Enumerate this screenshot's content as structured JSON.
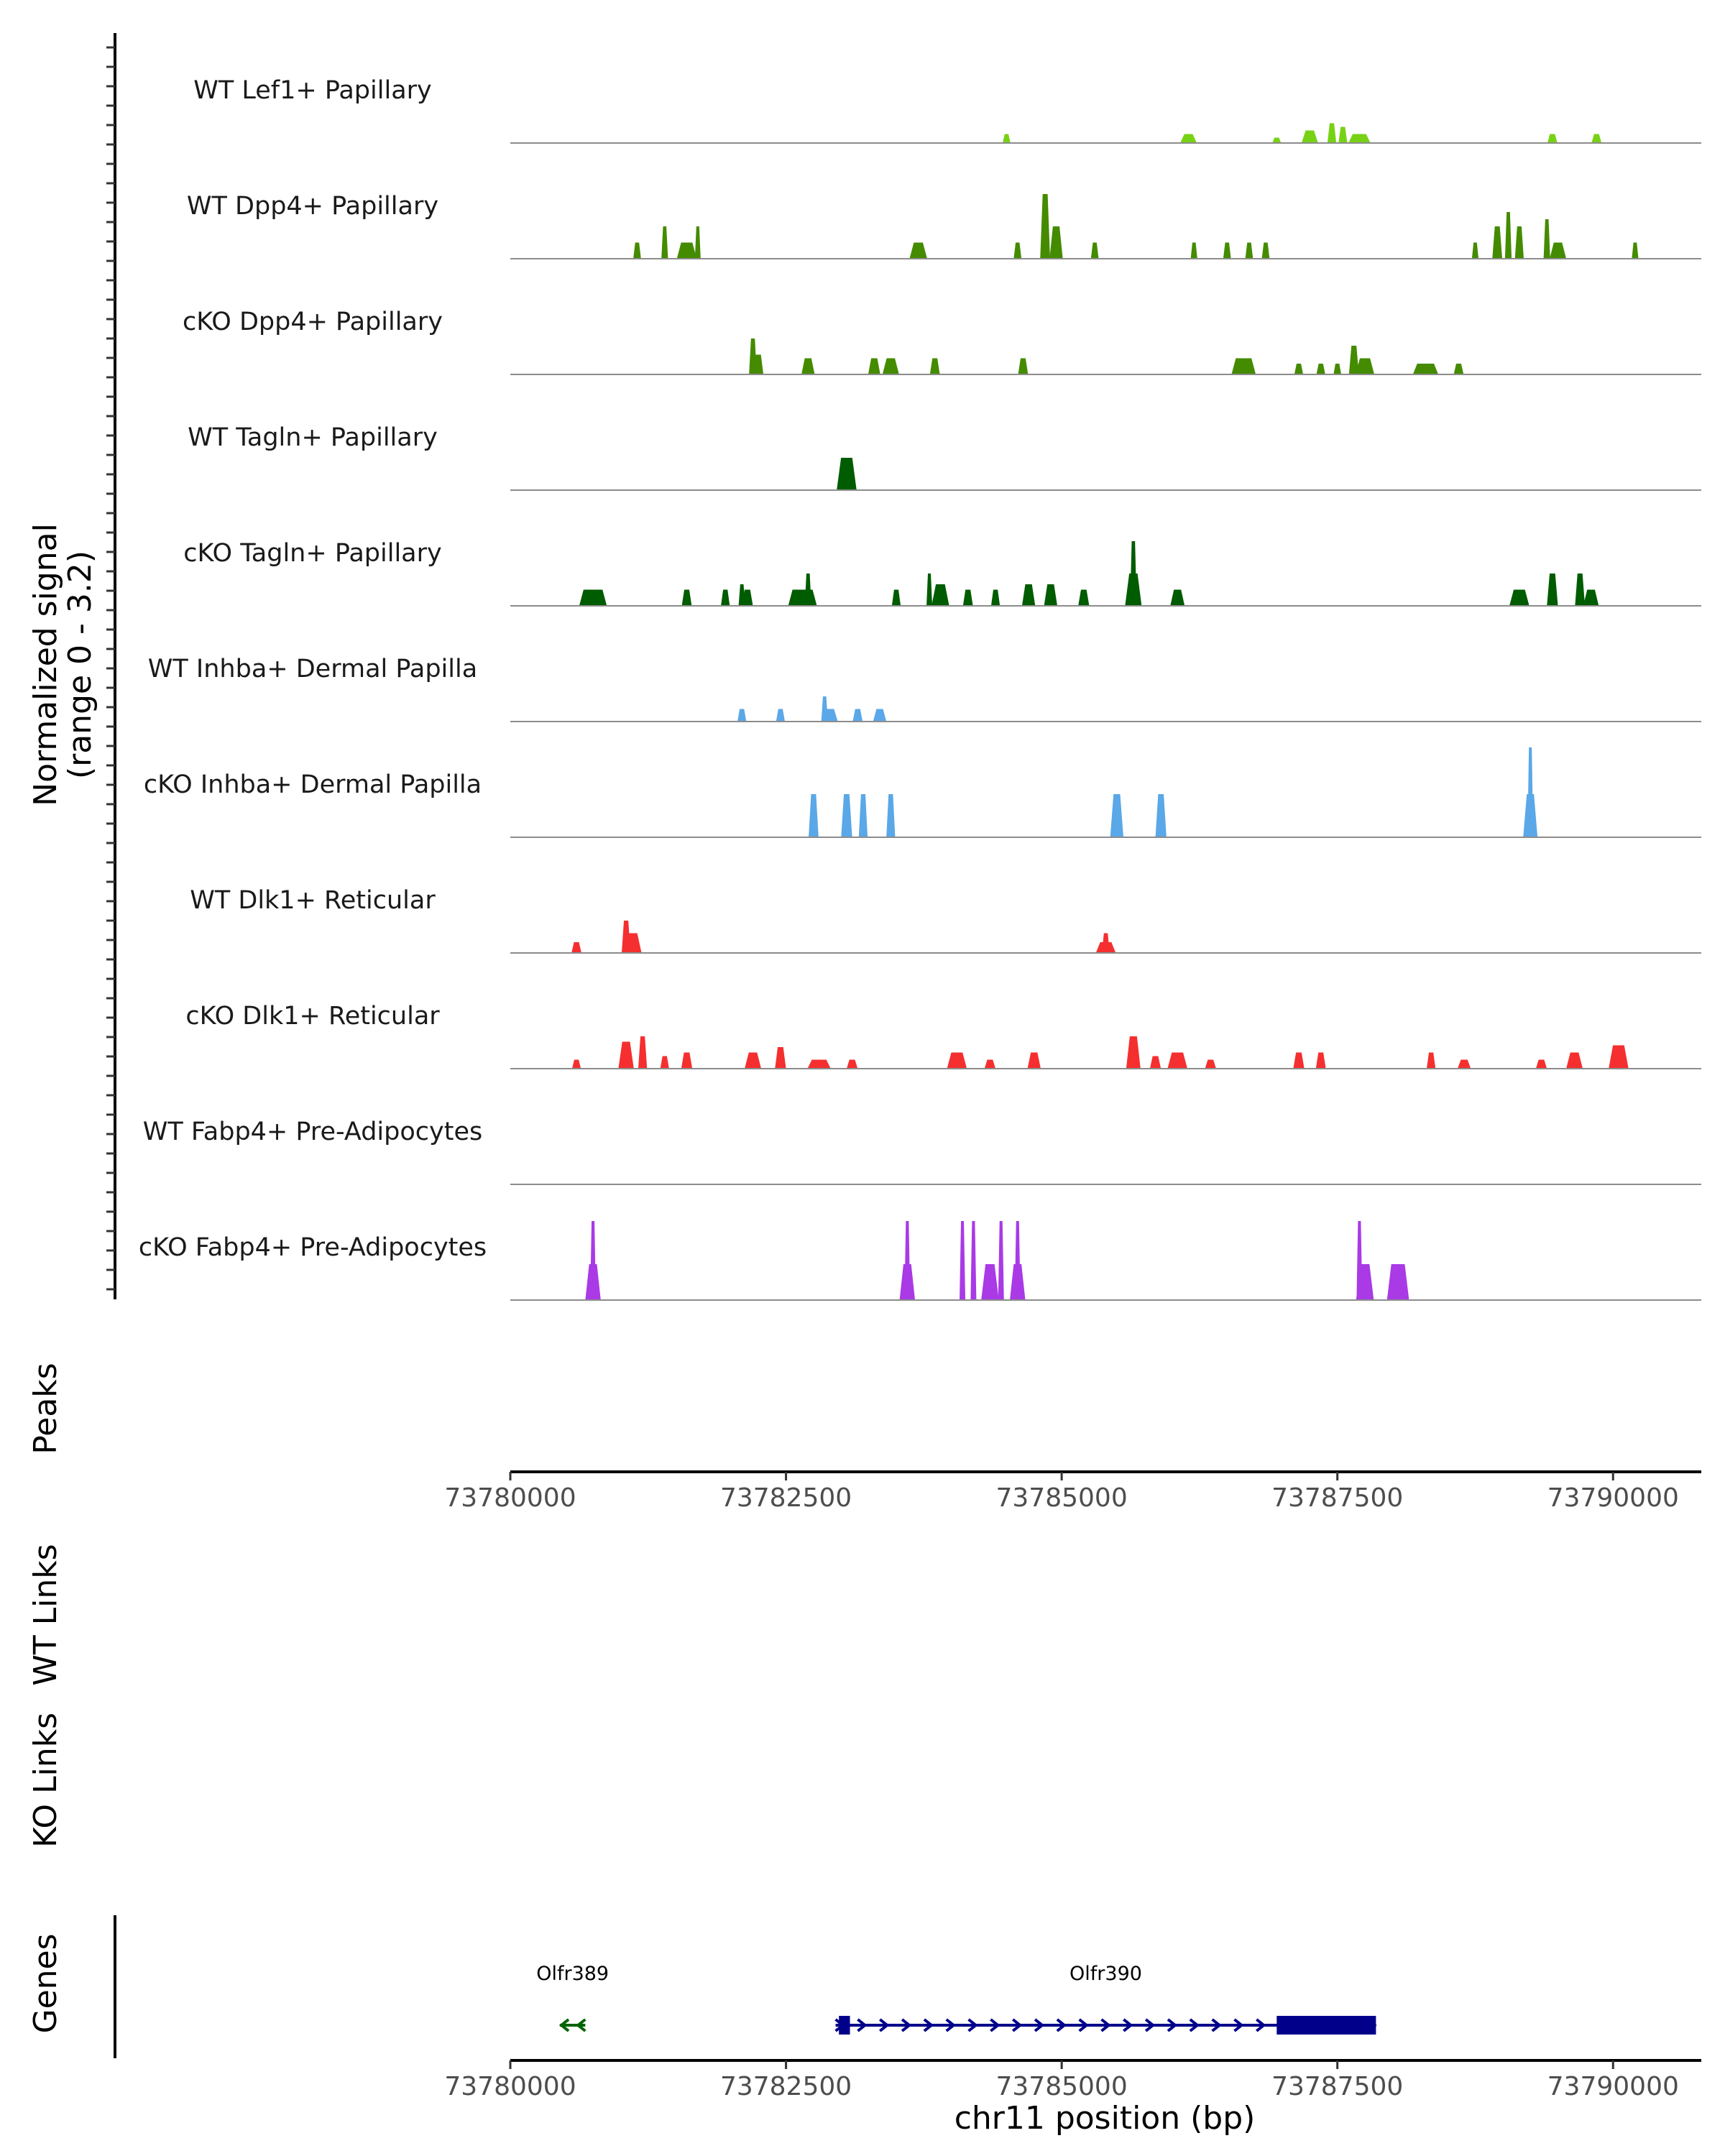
{
  "chart_data": {
    "type": "coverage",
    "ylabel": "Normalized signal",
    "yrange_label": "(range 0 - 3.2)",
    "ylim": [
      0,
      3.2
    ],
    "xlim": [
      73780000,
      73790800
    ],
    "xlabel": "chr11 position (bp)",
    "x_ticks": [
      "73780000",
      "73782500",
      "73785000",
      "73787500",
      "73790000"
    ],
    "x_tick_values": [
      73780000,
      73782500,
      73785000,
      73787500,
      73790000
    ],
    "section_labels": {
      "peaks": "Peaks",
      "wt_links": "WT Links",
      "ko_links": "KO Links",
      "genes": "Genes"
    },
    "tracks": [
      {
        "name": "WT Lef1+ Papillary",
        "color": "#77d215",
        "peaks": [
          [
            73784500,
            0.25,
            70
          ],
          [
            73786150,
            0.25,
            150
          ],
          [
            73786950,
            0.15,
            80
          ],
          [
            73787250,
            0.35,
            150
          ],
          [
            73787450,
            0.55,
            80
          ],
          [
            73787550,
            0.45,
            80
          ],
          [
            73787700,
            0.25,
            200
          ],
          [
            73789450,
            0.25,
            90
          ],
          [
            73789850,
            0.25,
            90
          ]
        ]
      },
      {
        "name": "WT Dpp4+ Papillary",
        "color": "#448b00",
        "peaks": [
          [
            73781150,
            0.45,
            70
          ],
          [
            73781400,
            0.9,
            60
          ],
          [
            73781600,
            0.45,
            180
          ],
          [
            73781700,
            0.9,
            50
          ],
          [
            73783700,
            0.45,
            160
          ],
          [
            73784600,
            0.45,
            70
          ],
          [
            73784850,
            1.8,
            90
          ],
          [
            73784950,
            0.9,
            120
          ],
          [
            73785300,
            0.45,
            70
          ],
          [
            73786200,
            0.45,
            60
          ],
          [
            73786500,
            0.45,
            70
          ],
          [
            73786700,
            0.45,
            70
          ],
          [
            73786850,
            0.45,
            70
          ],
          [
            73788750,
            0.45,
            60
          ],
          [
            73788950,
            0.9,
            90
          ],
          [
            73789050,
            1.3,
            60
          ],
          [
            73789150,
            0.9,
            80
          ],
          [
            73789400,
            1.1,
            60
          ],
          [
            73789500,
            0.45,
            150
          ],
          [
            73790200,
            0.45,
            60
          ]
        ]
      },
      {
        "name": "cKO Dpp4+ Papillary",
        "color": "#448b00",
        "peaks": [
          [
            73782200,
            1.0,
            70
          ],
          [
            73782250,
            0.55,
            90
          ],
          [
            73782700,
            0.45,
            120
          ],
          [
            73783300,
            0.45,
            110
          ],
          [
            73783450,
            0.45,
            150
          ],
          [
            73783850,
            0.45,
            90
          ],
          [
            73784650,
            0.45,
            90
          ],
          [
            73786650,
            0.45,
            220
          ],
          [
            73787150,
            0.3,
            80
          ],
          [
            73787350,
            0.3,
            80
          ],
          [
            73787500,
            0.3,
            70
          ],
          [
            73787650,
            0.8,
            90
          ],
          [
            73787750,
            0.45,
            170
          ],
          [
            73788300,
            0.3,
            230
          ],
          [
            73788600,
            0.3,
            90
          ]
        ]
      },
      {
        "name": "WT Tagln+ Papillary",
        "color": "#005c00",
        "peaks": [
          [
            73783050,
            0.9,
            180
          ]
        ]
      },
      {
        "name": "cKO Tagln+ Papillary",
        "color": "#005c00",
        "peaks": [
          [
            73780750,
            0.45,
            250
          ],
          [
            73781600,
            0.45,
            90
          ],
          [
            73781950,
            0.45,
            80
          ],
          [
            73782100,
            0.6,
            60
          ],
          [
            73782150,
            0.45,
            100
          ],
          [
            73782700,
            0.9,
            60
          ],
          [
            73782650,
            0.45,
            260
          ],
          [
            73783500,
            0.45,
            80
          ],
          [
            73783800,
            0.9,
            40
          ],
          [
            73783900,
            0.6,
            160
          ],
          [
            73784150,
            0.45,
            90
          ],
          [
            73784400,
            0.45,
            80
          ],
          [
            73784700,
            0.6,
            120
          ],
          [
            73784900,
            0.6,
            120
          ],
          [
            73785200,
            0.45,
            100
          ],
          [
            73785650,
            1.8,
            60
          ],
          [
            73785650,
            0.9,
            150
          ],
          [
            73786050,
            0.45,
            130
          ],
          [
            73789150,
            0.45,
            180
          ],
          [
            73789450,
            0.9,
            100
          ],
          [
            73789700,
            0.9,
            90
          ],
          [
            73789800,
            0.45,
            140
          ]
        ]
      },
      {
        "name": "WT Inhba+ Dermal Papilla",
        "color": "#5aa8e8",
        "peaks": [
          [
            73782100,
            0.35,
            80
          ],
          [
            73782450,
            0.35,
            80
          ],
          [
            73782850,
            0.7,
            60
          ],
          [
            73782900,
            0.35,
            140
          ],
          [
            73783150,
            0.35,
            90
          ],
          [
            73783350,
            0.35,
            120
          ]
        ]
      },
      {
        "name": "cKO Inhba+ Dermal Papilla",
        "color": "#5aa8e8",
        "peaks": [
          [
            73782750,
            1.2,
            90
          ],
          [
            73783050,
            1.2,
            100
          ],
          [
            73783200,
            1.2,
            80
          ],
          [
            73783450,
            1.2,
            80
          ],
          [
            73785500,
            1.2,
            120
          ],
          [
            73785900,
            1.2,
            100
          ],
          [
            73789250,
            2.5,
            40
          ],
          [
            73789250,
            1.2,
            130
          ]
        ]
      },
      {
        "name": "WT Dlk1+ Reticular",
        "color": "#f52f2f",
        "peaks": [
          [
            73780600,
            0.3,
            90
          ],
          [
            73781050,
            0.9,
            80
          ],
          [
            73781100,
            0.55,
            180
          ],
          [
            73785400,
            0.55,
            70
          ],
          [
            73785400,
            0.3,
            180
          ]
        ]
      },
      {
        "name": "cKO Dlk1+ Reticular",
        "color": "#f52f2f",
        "peaks": [
          [
            73780600,
            0.25,
            80
          ],
          [
            73781050,
            0.75,
            140
          ],
          [
            73781200,
            0.9,
            80
          ],
          [
            73781400,
            0.35,
            80
          ],
          [
            73781600,
            0.45,
            100
          ],
          [
            73782200,
            0.45,
            150
          ],
          [
            73782450,
            0.6,
            100
          ],
          [
            73782800,
            0.25,
            210
          ],
          [
            73783100,
            0.25,
            100
          ],
          [
            73784050,
            0.45,
            180
          ],
          [
            73784350,
            0.25,
            100
          ],
          [
            73784750,
            0.45,
            120
          ],
          [
            73785650,
            0.9,
            130
          ],
          [
            73785850,
            0.35,
            100
          ],
          [
            73786050,
            0.45,
            180
          ],
          [
            73786350,
            0.25,
            100
          ],
          [
            73787150,
            0.45,
            100
          ],
          [
            73787350,
            0.45,
            90
          ],
          [
            73788350,
            0.45,
            80
          ],
          [
            73788650,
            0.25,
            120
          ],
          [
            73789350,
            0.25,
            100
          ],
          [
            73789650,
            0.45,
            150
          ],
          [
            73790050,
            0.65,
            180
          ]
        ]
      },
      {
        "name": "WT Fabp4+ Pre-Adipocytes",
        "color": "#a93ae6",
        "peaks": []
      },
      {
        "name": "cKO Fabp4+ Pre-Adipocytes",
        "color": "#a93ae6",
        "peaks": [
          [
            73780750,
            2.2,
            40
          ],
          [
            73780750,
            1.0,
            140
          ],
          [
            73783600,
            2.2,
            40
          ],
          [
            73783600,
            1.0,
            140
          ],
          [
            73784100,
            2.2,
            30
          ],
          [
            73784200,
            2.2,
            30
          ],
          [
            73784350,
            1.0,
            160
          ],
          [
            73784450,
            2.2,
            30
          ],
          [
            73784600,
            2.2,
            40
          ],
          [
            73784600,
            1.0,
            140
          ],
          [
            73787700,
            2.2,
            50
          ],
          [
            73787750,
            1.0,
            160
          ],
          [
            73788050,
            1.0,
            200
          ]
        ]
      }
    ],
    "genes": [
      {
        "name": "Olfr389",
        "strand": "-",
        "start": 73780450,
        "end": 73780680,
        "color": "#006400",
        "exons": []
      },
      {
        "name": "Olfr390",
        "strand": "+",
        "start": 73782950,
        "end": 73787850,
        "color": "#00008b",
        "exons": [
          [
            73782980,
            73783080
          ],
          [
            73786950,
            73787850
          ]
        ]
      }
    ]
  }
}
